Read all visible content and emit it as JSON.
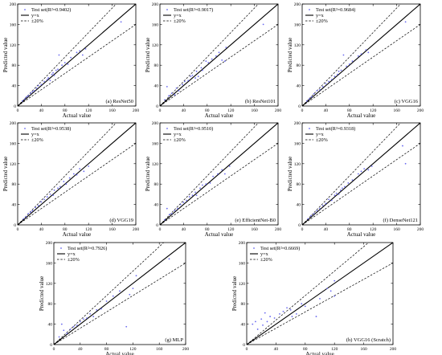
{
  "chart_data": [
    {
      "type": "scatter",
      "panel_label": "(a) ResNet50",
      "legend": {
        "test": "Test set(R²=0.9402)",
        "identity": "y=x",
        "band": "±20%"
      },
      "xlabel": "Actual value",
      "ylabel": "Predicted value",
      "xlim": [
        0,
        200
      ],
      "ylim": [
        0,
        200
      ],
      "xticks": [
        "0",
        "40",
        "80",
        "120",
        "160",
        "200"
      ],
      "yticks": [
        "0",
        "40",
        "80",
        "120",
        "160",
        "200"
      ],
      "points": [
        [
          8,
          10
        ],
        [
          12,
          14
        ],
        [
          15,
          18
        ],
        [
          18,
          20
        ],
        [
          22,
          25
        ],
        [
          25,
          28
        ],
        [
          28,
          30
        ],
        [
          32,
          35
        ],
        [
          35,
          40
        ],
        [
          40,
          42
        ],
        [
          45,
          48
        ],
        [
          50,
          52
        ],
        [
          52,
          55
        ],
        [
          55,
          50
        ],
        [
          58,
          62
        ],
        [
          60,
          65
        ],
        [
          62,
          60
        ],
        [
          65,
          70
        ],
        [
          68,
          72
        ],
        [
          70,
          100
        ],
        [
          75,
          80
        ],
        [
          80,
          85
        ],
        [
          85,
          82
        ],
        [
          90,
          95
        ],
        [
          100,
          105
        ],
        [
          105,
          108
        ],
        [
          110,
          100
        ],
        [
          115,
          112
        ],
        [
          175,
          165
        ]
      ]
    },
    {
      "type": "scatter",
      "panel_label": "(b) ResNet101",
      "legend": {
        "test": "Test set(R²=0.9017)",
        "identity": "y=x",
        "band": "±20%"
      },
      "xlabel": "Actual value",
      "ylabel": "Predicted value",
      "xlim": [
        0,
        200
      ],
      "ylim": [
        0,
        200
      ],
      "xticks": [
        "0",
        "40",
        "80",
        "120",
        "160",
        "200"
      ],
      "yticks": [
        "0",
        "40",
        "80",
        "120",
        "160",
        "200"
      ],
      "points": [
        [
          8,
          12
        ],
        [
          12,
          38
        ],
        [
          15,
          20
        ],
        [
          20,
          25
        ],
        [
          25,
          22
        ],
        [
          28,
          35
        ],
        [
          32,
          30
        ],
        [
          38,
          42
        ],
        [
          42,
          48
        ],
        [
          48,
          50
        ],
        [
          52,
          58
        ],
        [
          55,
          60
        ],
        [
          60,
          55
        ],
        [
          62,
          68
        ],
        [
          65,
          58
        ],
        [
          70,
          75
        ],
        [
          72,
          70
        ],
        [
          78,
          88
        ],
        [
          82,
          85
        ],
        [
          88,
          92
        ],
        [
          95,
          98
        ],
        [
          100,
          105
        ],
        [
          105,
          90
        ],
        [
          110,
          88
        ],
        [
          112,
          115
        ],
        [
          175,
          160
        ]
      ]
    },
    {
      "type": "scatter",
      "panel_label": "(c) VGG16",
      "legend": {
        "test": "Test set(R²=0.9684)",
        "identity": "y=x",
        "band": "±20%"
      },
      "xlabel": "Actual value",
      "ylabel": "Predicted value",
      "xlim": [
        0,
        200
      ],
      "ylim": [
        0,
        200
      ],
      "xticks": [
        "0",
        "40",
        "80",
        "120",
        "160",
        "200"
      ],
      "yticks": [
        "0",
        "40",
        "80",
        "120",
        "160",
        "200"
      ],
      "points": [
        [
          8,
          10
        ],
        [
          12,
          14
        ],
        [
          16,
          18
        ],
        [
          20,
          24
        ],
        [
          25,
          30
        ],
        [
          30,
          32
        ],
        [
          35,
          38
        ],
        [
          40,
          44
        ],
        [
          45,
          48
        ],
        [
          50,
          52
        ],
        [
          55,
          58
        ],
        [
          60,
          62
        ],
        [
          62,
          68
        ],
        [
          66,
          70
        ],
        [
          70,
          100
        ],
        [
          75,
          78
        ],
        [
          80,
          82
        ],
        [
          85,
          88
        ],
        [
          95,
          98
        ],
        [
          100,
          102
        ],
        [
          108,
          110
        ],
        [
          112,
          105
        ],
        [
          175,
          165
        ]
      ]
    },
    {
      "type": "scatter",
      "panel_label": "(d) VGG19",
      "legend": {
        "test": "Test set(R²=0.9538)",
        "identity": "y=x",
        "band": "±20%"
      },
      "xlabel": "Actual value",
      "ylabel": "Predicted value",
      "xlim": [
        0,
        200
      ],
      "ylim": [
        0,
        200
      ],
      "xticks": [
        "0",
        "40",
        "80",
        "120",
        "160",
        "200"
      ],
      "yticks": [
        "0",
        "40",
        "80",
        "120",
        "160",
        "200"
      ],
      "points": [
        [
          10,
          12
        ],
        [
          14,
          16
        ],
        [
          18,
          22
        ],
        [
          22,
          25
        ],
        [
          25,
          28
        ],
        [
          30,
          34
        ],
        [
          35,
          38
        ],
        [
          40,
          45
        ],
        [
          45,
          50
        ],
        [
          50,
          55
        ],
        [
          55,
          60
        ],
        [
          60,
          58
        ],
        [
          62,
          68
        ],
        [
          68,
          72
        ],
        [
          72,
          75
        ],
        [
          78,
          85
        ],
        [
          82,
          80
        ],
        [
          88,
          92
        ],
        [
          95,
          100
        ],
        [
          100,
          98
        ],
        [
          105,
          110
        ],
        [
          112,
          105
        ],
        [
          120,
          115
        ]
      ]
    },
    {
      "type": "scatter",
      "panel_label": "(e) EfficientNet-B0",
      "legend": {
        "test": "Test set(R²=0.9510)",
        "identity": "y=x",
        "band": "±20%"
      },
      "xlabel": "Actual value",
      "ylabel": "Predicted value",
      "xlim": [
        0,
        200
      ],
      "ylim": [
        0,
        200
      ],
      "xticks": [
        "0",
        "40",
        "80",
        "120",
        "160",
        "200"
      ],
      "yticks": [
        "0",
        "40",
        "80",
        "120",
        "160",
        "200"
      ],
      "points": [
        [
          8,
          10
        ],
        [
          12,
          32
        ],
        [
          16,
          20
        ],
        [
          20,
          22
        ],
        [
          25,
          28
        ],
        [
          30,
          32
        ],
        [
          35,
          40
        ],
        [
          40,
          44
        ],
        [
          45,
          48
        ],
        [
          50,
          55
        ],
        [
          55,
          58
        ],
        [
          60,
          64
        ],
        [
          62,
          58
        ],
        [
          68,
          72
        ],
        [
          72,
          78
        ],
        [
          78,
          80
        ],
        [
          85,
          82
        ],
        [
          90,
          95
        ],
        [
          98,
          100
        ],
        [
          105,
          108
        ],
        [
          110,
          100
        ],
        [
          118,
          115
        ]
      ]
    },
    {
      "type": "scatter",
      "panel_label": "(f) DenseNet121",
      "legend": {
        "test": "Test set(R²=0.9318)",
        "identity": "y=x",
        "band": "±20%"
      },
      "xlabel": "Actual value",
      "ylabel": "Predicted value",
      "xlim": [
        0,
        200
      ],
      "ylim": [
        0,
        200
      ],
      "xticks": [
        "0",
        "40",
        "80",
        "120",
        "160",
        "200"
      ],
      "yticks": [
        "0",
        "40",
        "80",
        "120",
        "160",
        "200"
      ],
      "points": [
        [
          10,
          12
        ],
        [
          15,
          18
        ],
        [
          20,
          22
        ],
        [
          25,
          28
        ],
        [
          30,
          32
        ],
        [
          35,
          38
        ],
        [
          40,
          42
        ],
        [
          45,
          50
        ],
        [
          50,
          48
        ],
        [
          55,
          58
        ],
        [
          58,
          62
        ],
        [
          62,
          60
        ],
        [
          65,
          68
        ],
        [
          68,
          72
        ],
        [
          72,
          75
        ],
        [
          78,
          82
        ],
        [
          85,
          88
        ],
        [
          95,
          100
        ],
        [
          100,
          105
        ],
        [
          105,
          110
        ],
        [
          112,
          108
        ],
        [
          118,
          115
        ],
        [
          170,
          155
        ],
        [
          175,
          120
        ]
      ]
    },
    {
      "type": "scatter",
      "panel_label": "(g) MLP",
      "legend": {
        "test": "Test set(R²=0.7926)",
        "identity": "y=x",
        "band": "±20%"
      },
      "xlabel": "Actual value",
      "ylabel": "Predicted value",
      "xlim": [
        0,
        200
      ],
      "ylim": [
        0,
        200
      ],
      "xticks": [
        "0",
        "40",
        "80",
        "120",
        "160",
        "200"
      ],
      "yticks": [
        "0",
        "40",
        "80",
        "120",
        "160",
        "200"
      ],
      "points": [
        [
          8,
          15
        ],
        [
          12,
          40
        ],
        [
          15,
          28
        ],
        [
          20,
          22
        ],
        [
          25,
          30
        ],
        [
          30,
          35
        ],
        [
          35,
          38
        ],
        [
          40,
          45
        ],
        [
          45,
          50
        ],
        [
          50,
          52
        ],
        [
          55,
          60
        ],
        [
          60,
          55
        ],
        [
          65,
          68
        ],
        [
          72,
          70
        ],
        [
          80,
          85
        ],
        [
          90,
          95
        ],
        [
          100,
          105
        ],
        [
          110,
          35
        ],
        [
          115,
          98
        ],
        [
          120,
          110
        ],
        [
          125,
          135
        ],
        [
          175,
          168
        ]
      ]
    },
    {
      "type": "scatter",
      "panel_label": "(h) VGG16 (Scratch)",
      "legend": {
        "test": "Test set(R²=0.6669)",
        "identity": "y=x",
        "band": "±20%"
      },
      "xlabel": "Actual value",
      "ylabel": "Predicted value",
      "xlim": [
        0,
        200
      ],
      "ylim": [
        0,
        200
      ],
      "xticks": [
        "0",
        "40",
        "80",
        "120",
        "160",
        "200"
      ],
      "yticks": [
        "0",
        "40",
        "80",
        "120",
        "160",
        "200"
      ],
      "points": [
        [
          8,
          40
        ],
        [
          12,
          45
        ],
        [
          15,
          30
        ],
        [
          20,
          50
        ],
        [
          22,
          38
        ],
        [
          25,
          62
        ],
        [
          28,
          45
        ],
        [
          32,
          55
        ],
        [
          38,
          52
        ],
        [
          45,
          60
        ],
        [
          50,
          65
        ],
        [
          55,
          72
        ],
        [
          60,
          68
        ],
        [
          62,
          55
        ],
        [
          68,
          60
        ],
        [
          75,
          80
        ],
        [
          80,
          75
        ],
        [
          95,
          55
        ],
        [
          100,
          90
        ],
        [
          110,
          110
        ],
        [
          115,
          105
        ],
        [
          120,
          125
        ],
        [
          120,
          95
        ]
      ]
    }
  ],
  "colors": {
    "points": "#6a6af0",
    "lines": "#000000"
  }
}
